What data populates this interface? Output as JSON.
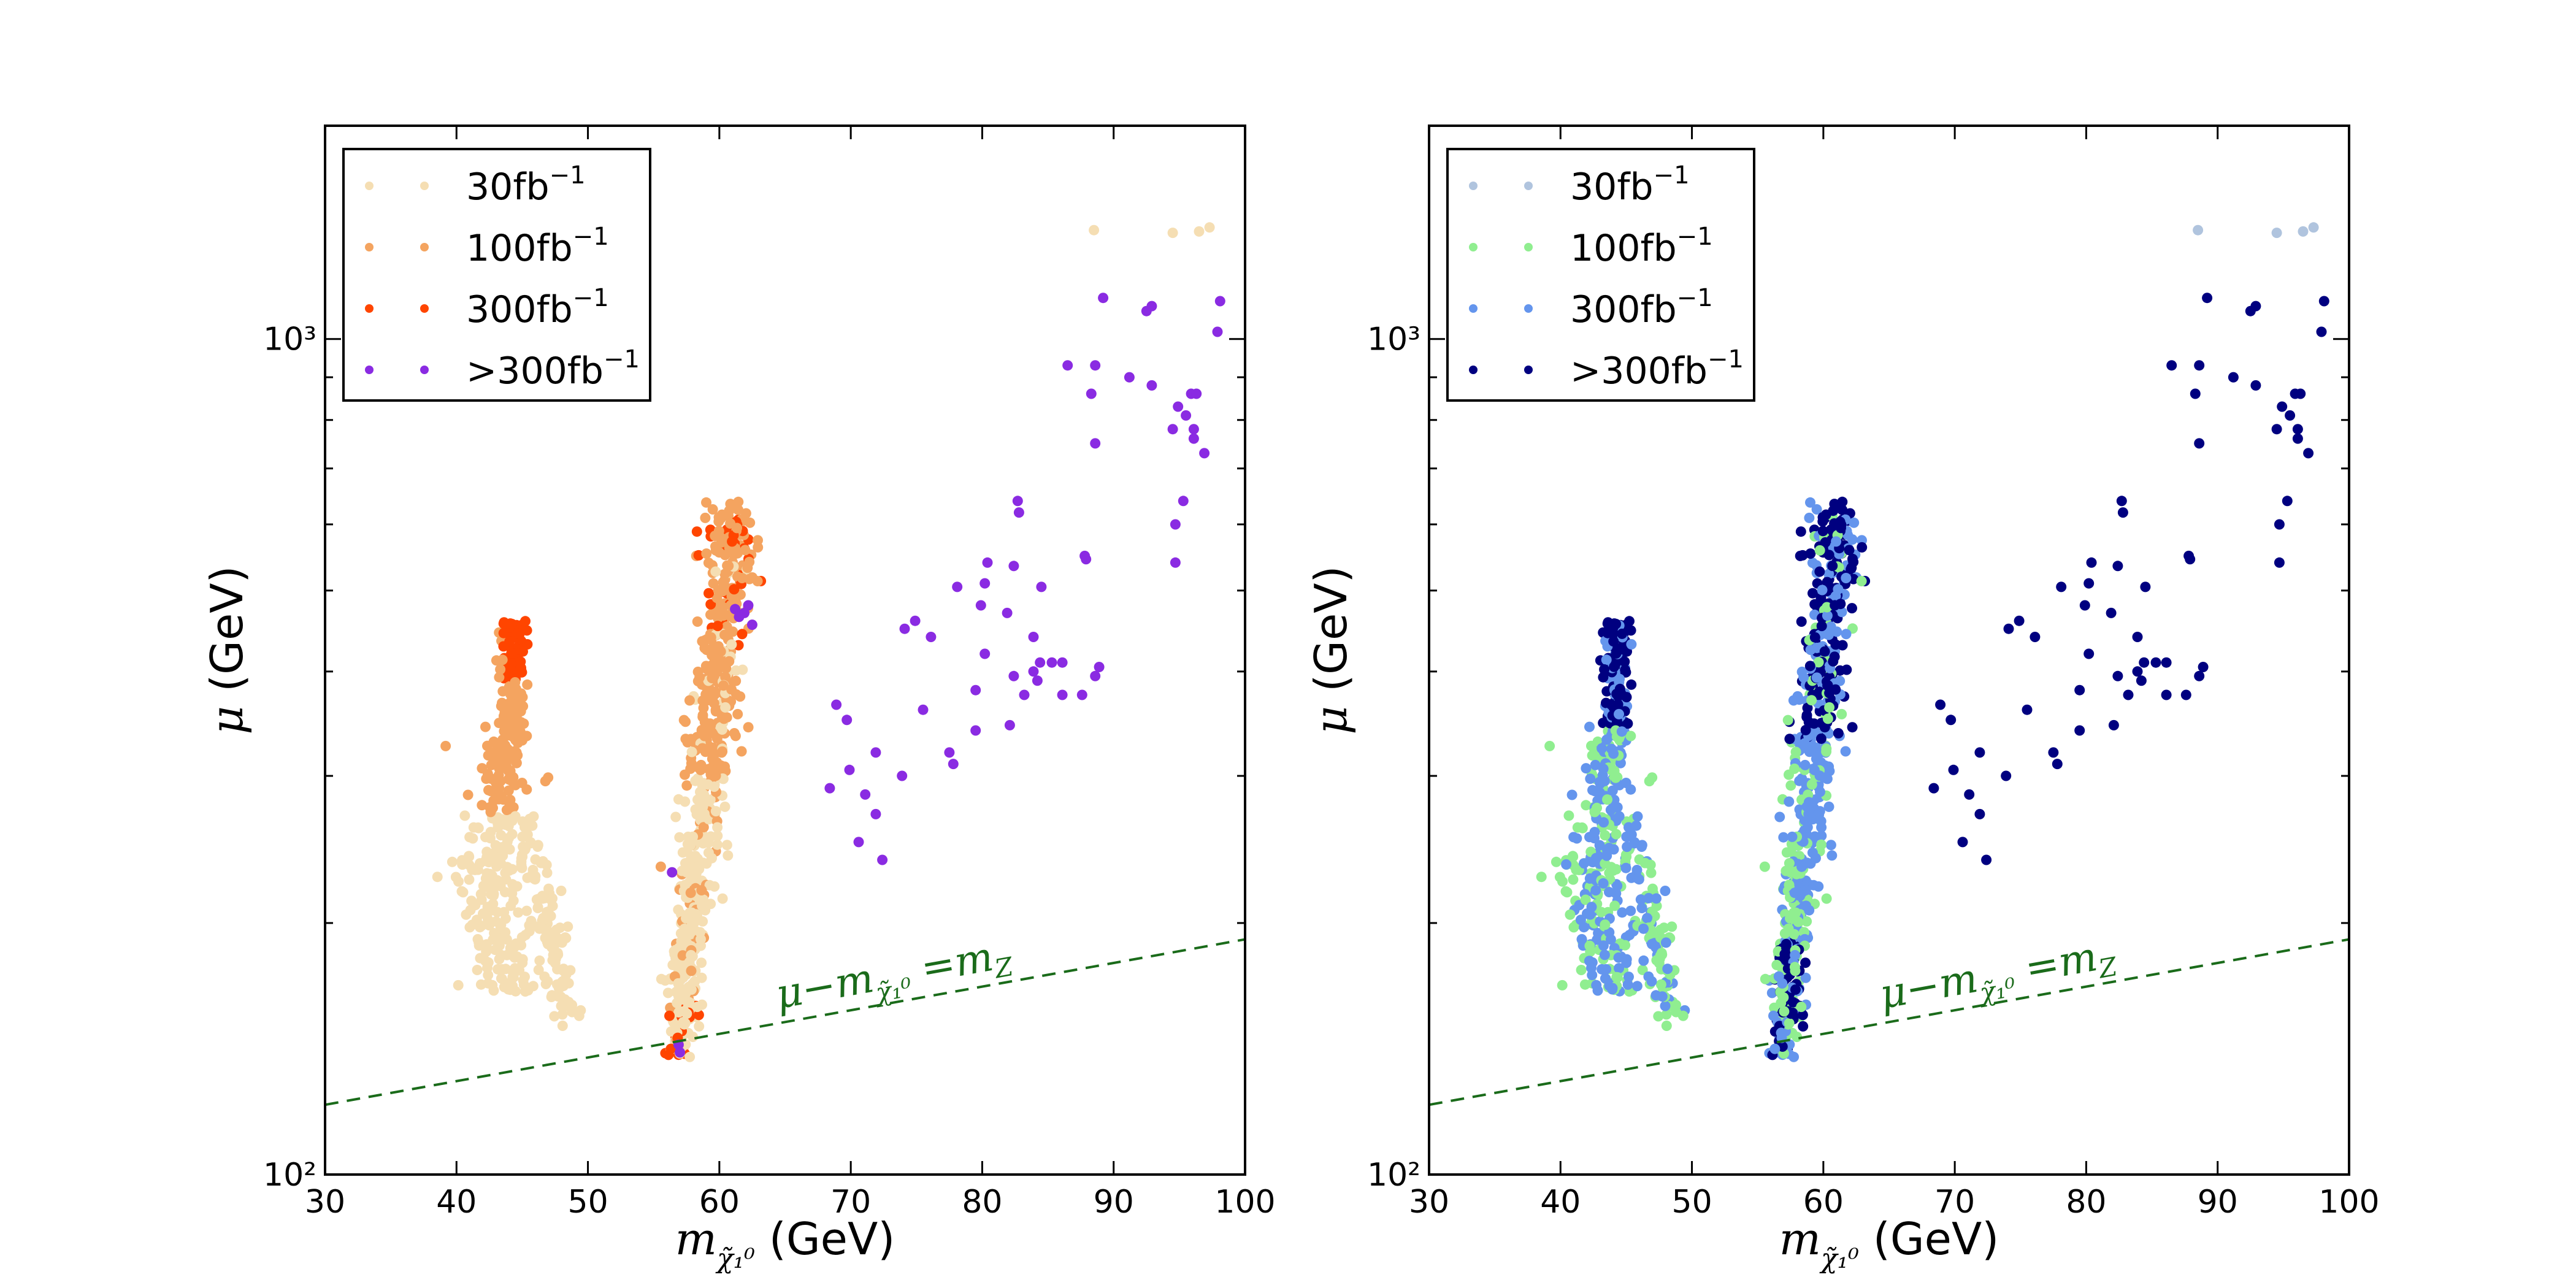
{
  "chart_data": [
    {
      "type": "scatter",
      "xlabel": "m_χ̃₁⁰ (GeV)",
      "ylabel": "μ (GeV)",
      "xlim": [
        30,
        100
      ],
      "ylim": [
        100,
        1800
      ],
      "yscale": "log",
      "xticks": [
        "30",
        "40",
        "50",
        "60",
        "70",
        "80",
        "90",
        "100"
      ],
      "yticks": [
        "10²",
        "10³"
      ],
      "legend_position": "top-left",
      "annotation": "μ−m_χ̃₁⁰ = m_Z",
      "series": [
        {
          "name": "30fb⁻¹",
          "color": "#f5deb3"
        },
        {
          "name": "100fb⁻¹",
          "color": "#f4a460"
        },
        {
          "name": "300fb⁻¹",
          "color": "#ff4500"
        },
        {
          "name": ">300fb⁻¹",
          "color": "#8a2be2"
        }
      ],
      "reference_line": {
        "label": "μ−m_χ̃₁⁰ = m_Z",
        "color": "#1a6b1a",
        "style": "dashed",
        "points": [
          [
            30,
            121.2
          ],
          [
            100,
            191.2
          ]
        ]
      }
    },
    {
      "type": "scatter",
      "xlabel": "m_χ̃₁⁰ (GeV)",
      "ylabel": "μ (GeV)",
      "xlim": [
        30,
        100
      ],
      "ylim": [
        100,
        1800
      ],
      "yscale": "log",
      "xticks": [
        "30",
        "40",
        "50",
        "60",
        "70",
        "80",
        "90",
        "100"
      ],
      "yticks": [
        "10²",
        "10³"
      ],
      "legend_position": "top-left",
      "annotation": "μ−m_χ̃₁⁰ = m_Z",
      "series": [
        {
          "name": "30fb⁻¹",
          "color": "#b0c4de"
        },
        {
          "name": "100fb⁻¹",
          "color": "#90ee90"
        },
        {
          "name": "300fb⁻¹",
          "color": "#6495ed"
        },
        {
          "name": ">300fb⁻¹",
          "color": "#000080"
        }
      ],
      "reference_line": {
        "label": "μ−m_χ̃₁⁰ = m_Z",
        "color": "#1a6b1a",
        "style": "dashed",
        "points": [
          [
            30,
            121.2
          ],
          [
            100,
            191.2
          ]
        ]
      }
    }
  ],
  "scatter_groups": {
    "light_top": [
      [
        88.5,
        1350
      ],
      [
        94.5,
        1340
      ],
      [
        96.5,
        1345
      ],
      [
        97.3,
        1360
      ]
    ],
    "purple_scatter": [
      [
        89.2,
        1120
      ],
      [
        92.5,
        1080
      ],
      [
        92.9,
        1095
      ],
      [
        98.1,
        1110
      ],
      [
        97.9,
        1020
      ],
      [
        86.5,
        930
      ],
      [
        88.6,
        930
      ],
      [
        91.2,
        900
      ],
      [
        92.9,
        880
      ],
      [
        88.3,
        860
      ],
      [
        95.9,
        860
      ],
      [
        96.3,
        860
      ],
      [
        94.9,
        830
      ],
      [
        95.5,
        810
      ],
      [
        96.1,
        780
      ],
      [
        94.5,
        780
      ],
      [
        96.1,
        760
      ],
      [
        96.9,
        730
      ],
      [
        88.6,
        750
      ],
      [
        82.7,
        640
      ],
      [
        95.3,
        640
      ],
      [
        82.8,
        620
      ],
      [
        94.7,
        600
      ],
      [
        87.8,
        550
      ],
      [
        94.7,
        540
      ],
      [
        80.4,
        540
      ],
      [
        87.9,
        545
      ],
      [
        82.4,
        535
      ],
      [
        80.2,
        510
      ],
      [
        78.1,
        505
      ],
      [
        84.5,
        505
      ],
      [
        79.9,
        480
      ],
      [
        81.9,
        470
      ],
      [
        74.9,
        460
      ],
      [
        74.1,
        450
      ],
      [
        76.1,
        440
      ],
      [
        83.9,
        440
      ],
      [
        80.2,
        420
      ],
      [
        84.4,
        410
      ],
      [
        85.3,
        410
      ],
      [
        86.1,
        410
      ],
      [
        83.9,
        400
      ],
      [
        88.9,
        405
      ],
      [
        88.6,
        395
      ],
      [
        82.4,
        395
      ],
      [
        84.2,
        390
      ],
      [
        79.5,
        380
      ],
      [
        83.2,
        375
      ],
      [
        86.1,
        375
      ],
      [
        87.6,
        375
      ],
      [
        68.9,
        365
      ],
      [
        69.7,
        350
      ],
      [
        75.5,
        360
      ],
      [
        82.1,
        345
      ],
      [
        79.5,
        340
      ],
      [
        71.9,
        320
      ],
      [
        77.5,
        320
      ],
      [
        77.8,
        310
      ],
      [
        69.9,
        305
      ],
      [
        73.9,
        300
      ],
      [
        68.4,
        290
      ],
      [
        71.1,
        285
      ],
      [
        71.9,
        270
      ],
      [
        70.6,
        250
      ],
      [
        72.4,
        238
      ]
    ]
  },
  "legend_labels": [
    "30fb",
    "100fb",
    "300fb",
    ">300fb"
  ],
  "legend_sup": "−1"
}
